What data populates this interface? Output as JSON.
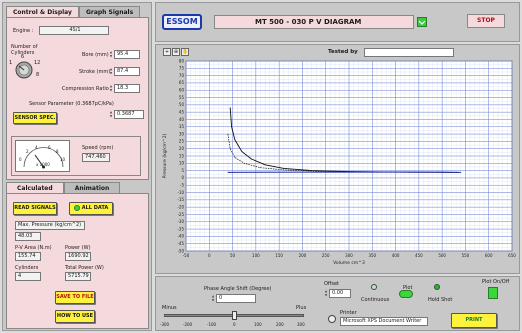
{
  "left_tabs": [
    "Control & Display",
    "Graph Signals"
  ],
  "engine": {
    "label": "Engine :",
    "value": "4S/1"
  },
  "cylinders": {
    "label": "Number of Cylinders",
    "ticks": [
      "1",
      "6",
      "12",
      "8"
    ]
  },
  "bore": {
    "label": "Bore (mm)",
    "value": "95.4"
  },
  "stroke": {
    "label": "Stroke (mm)",
    "value": "87.4"
  },
  "compression": {
    "label": "Compression Ratio",
    "value": "18.3"
  },
  "sensor": {
    "label": "Sensor Parameter (0.3687pC/kPa)",
    "value": "0.3687",
    "button": "SENSOR SPEC."
  },
  "speed": {
    "label": "Speed (rpm)",
    "value": "747.460",
    "scale": [
      "0",
      "2",
      "4",
      "6",
      "8",
      "10",
      "x 1000"
    ]
  },
  "bottom_tabs": [
    "Calculated",
    "Animation"
  ],
  "read_signals": "READ SIGNALS",
  "all_data": "ALL DATA",
  "max_pressure": {
    "label": "Max. Pressure (kg/cm^2)",
    "value": "48.03"
  },
  "pv_area": {
    "label": "P-V Area (N.m)",
    "value": "155.74"
  },
  "power": {
    "label": "Power (W)",
    "value": "1690.92"
  },
  "cyl_count": {
    "label": "Cylinders",
    "value": "4"
  },
  "total_power": {
    "label": "Total Power (W)",
    "value": "5715.79"
  },
  "save_file": "SAVE TO FILE",
  "how_to_use": "HOW TO USE",
  "logo": "ESSOM",
  "diagram_title": "MT 500 - 030  P V DIAGRAM",
  "stop": "STOP",
  "tested_by": {
    "label": "Tested by",
    "value": ""
  },
  "chart_data": {
    "type": "line",
    "ylabel": "Pressure (kg/cm^2)",
    "xlabel": "Volume cm^3",
    "xlim": [
      -50,
      650
    ],
    "ylim": [
      -50,
      80
    ],
    "xticks": [
      -50,
      0,
      50,
      100,
      150,
      200,
      250,
      300,
      350,
      400,
      450,
      500,
      550,
      600,
      650
    ],
    "yticks": [
      -50,
      -45,
      -40,
      -35,
      -30,
      -25,
      -20,
      -15,
      -10,
      -5,
      0,
      5,
      10,
      15,
      20,
      25,
      30,
      35,
      40,
      45,
      50,
      55,
      60,
      65,
      70,
      75,
      80
    ],
    "grid": true,
    "series": [
      {
        "values": [
          [
            45,
            48
          ],
          [
            48,
            35
          ],
          [
            55,
            26
          ],
          [
            70,
            18
          ],
          [
            90,
            13
          ],
          [
            120,
            9
          ],
          [
            160,
            6.5
          ],
          [
            220,
            5
          ],
          [
            300,
            4.3
          ],
          [
            400,
            4
          ],
          [
            500,
            3.9
          ],
          [
            535,
            3.8
          ]
        ]
      },
      {
        "values": [
          [
            40,
            30
          ],
          [
            45,
            20
          ],
          [
            55,
            14
          ],
          [
            75,
            10
          ],
          [
            110,
            7
          ],
          [
            160,
            5.5
          ],
          [
            230,
            4.6
          ],
          [
            320,
            4.1
          ],
          [
            420,
            3.9
          ],
          [
            520,
            3.8
          ]
        ]
      },
      {
        "values": [
          [
            40,
            3.8
          ],
          [
            100,
            3.9
          ],
          [
            200,
            4
          ],
          [
            300,
            4
          ],
          [
            400,
            4
          ],
          [
            500,
            3.9
          ],
          [
            540,
            3.8
          ]
        ]
      }
    ]
  },
  "phase": {
    "label": "Phase Angle Shift (Degree)",
    "value": "0",
    "minus": "Minus",
    "plus": "Plus",
    "ticks": [
      "-300",
      "-200",
      "-100",
      "0",
      "100",
      "200",
      "300"
    ]
  },
  "offset": {
    "label": "Offset",
    "value": "0.00"
  },
  "plot_modes": [
    "Continuous",
    "Plot",
    "Hold Shot"
  ],
  "plot_onoff": "Plot On/Off",
  "printer": {
    "label": "Printer",
    "value": "Microsoft XPS Document Writer"
  },
  "print": "PRINT"
}
